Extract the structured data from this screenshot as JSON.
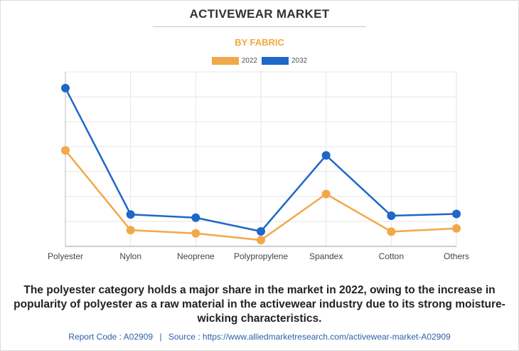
{
  "header": {
    "title": "ACTIVEWEAR MARKET",
    "subtitle": "BY FABRIC"
  },
  "legend": [
    {
      "label": "2022",
      "color": "#f2a848"
    },
    {
      "label": "2032",
      "color": "#1f67c8"
    }
  ],
  "chart_data": {
    "type": "line",
    "categories": [
      "Polyester",
      "Nylon",
      "Neoprene",
      "Polypropylene",
      "Spandex",
      "Cotton",
      "Others"
    ],
    "series": [
      {
        "name": "2022",
        "color": "#f2a848",
        "values": [
          38.5,
          6.5,
          5.2,
          2.5,
          21.0,
          5.9,
          7.2
        ]
      },
      {
        "name": "2032",
        "color": "#1f67c8",
        "values": [
          63.5,
          12.8,
          11.5,
          6.0,
          36.5,
          12.3,
          13.0
        ]
      }
    ],
    "ylim": [
      0,
      70
    ],
    "grid": true,
    "legend_position": "top-center"
  },
  "caption": "The polyester category holds a major share in the market in 2022, owing to the increase in popularity of polyester as a raw material in the activewear industry due to its strong moisture-wicking characteristics.",
  "footer": {
    "report_code": "Report Code : A02909",
    "separator": "|",
    "source": "Source : https://www.alliedmarketresearch.com/activewear-market-A02909"
  }
}
